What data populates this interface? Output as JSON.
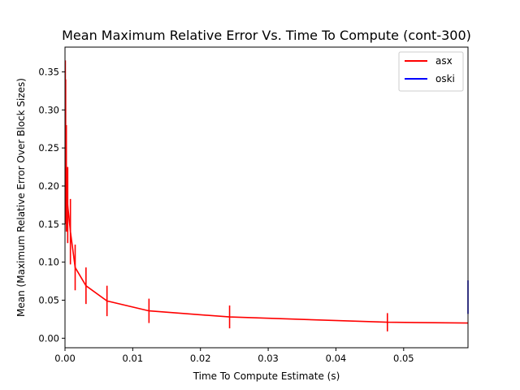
{
  "chart_data": {
    "type": "line",
    "title": "Mean Maximum Relative Error Vs. Time To Compute (cont-300)",
    "xlabel": "Time To Compute Estimate (s)",
    "ylabel": "Mean (Maximum Relative Error Over Block Sizes)",
    "xlim": [
      0,
      0.0595
    ],
    "ylim": [
      -0.0125,
      0.3825
    ],
    "xticks": [
      0,
      0.01,
      0.02,
      0.03,
      0.04,
      0.05
    ],
    "xtick_labels": [
      "0.00",
      "0.01",
      "0.02",
      "0.03",
      "0.04",
      "0.05"
    ],
    "yticks": [
      0,
      0.05,
      0.1,
      0.15,
      0.2,
      0.25,
      0.3,
      0.35
    ],
    "ytick_labels": [
      "0.00",
      "0.05",
      "0.10",
      "0.15",
      "0.20",
      "0.25",
      "0.30",
      "0.35"
    ],
    "grid": false,
    "legend_position": "upper right",
    "series": [
      {
        "name": "asx",
        "color": "#ff0000",
        "x": [
          5e-05,
          0.0001,
          0.0002,
          0.0004,
          0.0008,
          0.0015,
          0.0031,
          0.0062,
          0.0124,
          0.0243,
          0.0476,
          0.0595
        ],
        "y": [
          0.285,
          0.245,
          0.21,
          0.175,
          0.14,
          0.093,
          0.069,
          0.049,
          0.036,
          0.028,
          0.021,
          0.02
        ],
        "err": [
          0.08,
          0.095,
          0.07,
          0.05,
          0.043,
          0.03,
          0.024,
          0.02,
          0.016,
          0.015,
          0.012,
          0.0
        ]
      },
      {
        "name": "oski",
        "color": "#0000ff",
        "x": [
          0.0595
        ],
        "y": [
          0.054
        ],
        "err": [
          0.022
        ]
      }
    ]
  }
}
